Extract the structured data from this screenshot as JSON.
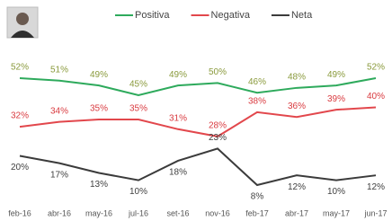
{
  "chart_data": {
    "type": "line",
    "categories": [
      "feb-16",
      "abr-16",
      "may-16",
      "jul-16",
      "set-16",
      "nov-16",
      "feb-17",
      "abr-17",
      "may-17",
      "jun-17"
    ],
    "legend": "top",
    "series": [
      {
        "name": "Positiva",
        "color": "#2eaa5c",
        "label_color": "#8a9a3c",
        "values": [
          52,
          51,
          49,
          45,
          49,
          50,
          46,
          48,
          49,
          52
        ],
        "value_labels": [
          "52%",
          "51%",
          "49%",
          "45%",
          "49%",
          "50%",
          "46%",
          "48%",
          "49%",
          "52%"
        ]
      },
      {
        "name": "Negativa",
        "color": "#e2474c",
        "label_color": "#d93a3f",
        "values": [
          32,
          34,
          35,
          35,
          31,
          28,
          38,
          36,
          39,
          40
        ],
        "value_labels": [
          "32%",
          "34%",
          "35%",
          "35%",
          "31%",
          "28%",
          "38%",
          "36%",
          "39%",
          "40%"
        ]
      },
      {
        "name": "Neta",
        "color": "#3b3b3b",
        "label_color": "#404040",
        "values": [
          20,
          17,
          13,
          10,
          18,
          23,
          8,
          12,
          10,
          12
        ],
        "value_labels": [
          "20%",
          "17%",
          "13%",
          "10%",
          "18%",
          "23%",
          "8%",
          "12%",
          "10%",
          "12%"
        ]
      }
    ]
  }
}
